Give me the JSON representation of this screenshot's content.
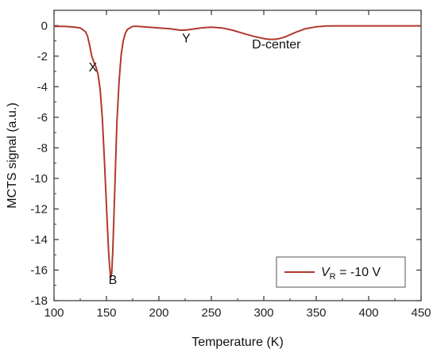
{
  "chart_data": {
    "type": "line",
    "title": "",
    "xlabel": "Temperature (K)",
    "ylabel": "MCTS signal (a.u.)",
    "xlim": [
      100,
      450
    ],
    "ylim": [
      -18,
      1
    ],
    "xticks": [
      100,
      150,
      200,
      250,
      300,
      350,
      400,
      450
    ],
    "yticks": [
      0,
      -2,
      -4,
      -6,
      -8,
      -10,
      -12,
      -14,
      -16,
      -18
    ],
    "grid": false,
    "legend_position": "bottom-right",
    "series": [
      {
        "legend_main": "V",
        "legend_sub": "R",
        "legend_suffix": " = -10 V",
        "color": "#b03a2e",
        "x": [
          100,
          110,
          120,
          125,
          130,
          132,
          134,
          136,
          138,
          140,
          142,
          144,
          146,
          148,
          150,
          151,
          152,
          153,
          154,
          155,
          156,
          157,
          158,
          159,
          160,
          162,
          164,
          166,
          168,
          170,
          175,
          180,
          190,
          200,
          210,
          220,
          225,
          230,
          240,
          250,
          260,
          270,
          280,
          290,
          300,
          305,
          310,
          315,
          320,
          330,
          340,
          350,
          360,
          370,
          380,
          400,
          420,
          450
        ],
        "y": [
          -0.05,
          -0.05,
          -0.1,
          -0.15,
          -0.4,
          -0.7,
          -1.3,
          -2.0,
          -2.4,
          -2.7,
          -3.2,
          -4.2,
          -6.0,
          -8.8,
          -11.8,
          -13.3,
          -14.7,
          -15.8,
          -16.5,
          -16.2,
          -14.8,
          -12.8,
          -10.5,
          -8.3,
          -6.3,
          -3.7,
          -1.9,
          -1.0,
          -0.5,
          -0.25,
          -0.05,
          -0.05,
          -0.1,
          -0.15,
          -0.2,
          -0.3,
          -0.3,
          -0.25,
          -0.15,
          -0.1,
          -0.15,
          -0.3,
          -0.5,
          -0.7,
          -0.85,
          -0.9,
          -0.9,
          -0.85,
          -0.75,
          -0.45,
          -0.2,
          -0.08,
          -0.03,
          -0.02,
          -0.02,
          -0.02,
          -0.02,
          -0.02
        ]
      }
    ],
    "annotations": [
      {
        "text": "X",
        "x": 137,
        "y": -3.0
      },
      {
        "text": "B",
        "x": 156,
        "y": -16.9
      },
      {
        "text": "Y",
        "x": 226,
        "y": -1.1
      },
      {
        "text": "D-center",
        "x": 312,
        "y": -1.5
      }
    ]
  }
}
